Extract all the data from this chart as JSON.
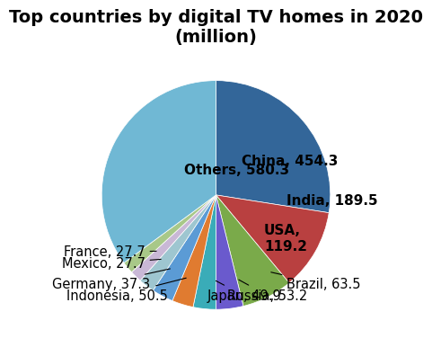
{
  "title": "Top countries by digital TV homes in 2020\n(million)",
  "labels": [
    "China",
    "India",
    "USA",
    "Brazil",
    "Russia",
    "Japan",
    "Indonesia",
    "Germany",
    "Mexico",
    "France",
    "Others"
  ],
  "values": [
    454.3,
    189.5,
    119.2,
    63.5,
    53.2,
    49.9,
    50.5,
    37.3,
    27.7,
    27.7,
    580.3
  ],
  "colors": [
    "#336699",
    "#b94040",
    "#7aaa4a",
    "#6a5acd",
    "#3aacb8",
    "#e07b30",
    "#5b9bd5",
    "#9ec6d0",
    "#c9b8d6",
    "#a8c888",
    "#70b8d4"
  ],
  "startangle": 90,
  "title_fontsize": 14,
  "label_fontsize": 10.5
}
